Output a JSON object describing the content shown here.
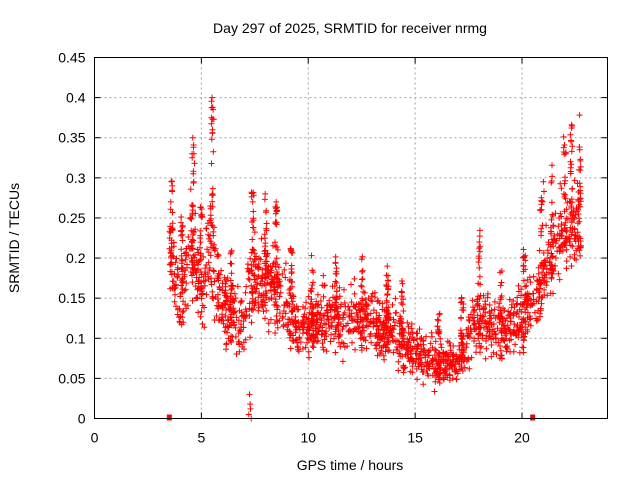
{
  "chart_data": {
    "type": "scatter",
    "title": "Day 297 of 2025, SRMTID for receiver nrmg",
    "xlabel": "GPS time / hours",
    "ylabel": "SRMTID / TECUs",
    "xlim": [
      0,
      24
    ],
    "ylim": [
      0,
      0.45
    ],
    "x_ticks": [
      0,
      5,
      10,
      15,
      20
    ],
    "x_tick_labels": [
      "0",
      "5",
      "10",
      "15",
      "20"
    ],
    "y_ticks": [
      0,
      0.05,
      0.1,
      0.15,
      0.2,
      0.25,
      0.3,
      0.35,
      0.4,
      0.45
    ],
    "y_tick_labels": [
      "0",
      "0.05",
      "0.1",
      "0.15",
      "0.2",
      "0.25",
      "0.3",
      "0.35",
      "0.4",
      "0.45"
    ],
    "grid": true,
    "marker": "+",
    "color": "#ff0000",
    "data_start_hours": 3.5,
    "data_end_hours": 22.75,
    "boundary_marks_hours": [
      3.5,
      20.5
    ],
    "envelope": [
      {
        "x": 3.5,
        "y": 0.21,
        "spread": 0.05
      },
      {
        "x": 4.0,
        "y": 0.14,
        "spread": 0.04
      },
      {
        "x": 4.5,
        "y": 0.22,
        "spread": 0.07
      },
      {
        "x": 5.0,
        "y": 0.16,
        "spread": 0.05
      },
      {
        "x": 5.5,
        "y": 0.22,
        "spread": 0.09
      },
      {
        "x": 6.0,
        "y": 0.14,
        "spread": 0.04
      },
      {
        "x": 7.0,
        "y": 0.12,
        "spread": 0.05
      },
      {
        "x": 7.5,
        "y": 0.18,
        "spread": 0.06
      },
      {
        "x": 8.5,
        "y": 0.16,
        "spread": 0.05
      },
      {
        "x": 9.5,
        "y": 0.11,
        "spread": 0.04
      },
      {
        "x": 11.0,
        "y": 0.13,
        "spread": 0.04
      },
      {
        "x": 12.5,
        "y": 0.12,
        "spread": 0.04
      },
      {
        "x": 14.0,
        "y": 0.11,
        "spread": 0.04
      },
      {
        "x": 15.0,
        "y": 0.08,
        "spread": 0.03
      },
      {
        "x": 16.0,
        "y": 0.07,
        "spread": 0.03
      },
      {
        "x": 17.0,
        "y": 0.07,
        "spread": 0.03
      },
      {
        "x": 18.0,
        "y": 0.13,
        "spread": 0.05
      },
      {
        "x": 19.0,
        "y": 0.11,
        "spread": 0.04
      },
      {
        "x": 20.0,
        "y": 0.12,
        "spread": 0.04
      },
      {
        "x": 21.0,
        "y": 0.18,
        "spread": 0.05
      },
      {
        "x": 22.0,
        "y": 0.24,
        "spread": 0.06
      },
      {
        "x": 22.75,
        "y": 0.26,
        "spread": 0.06
      }
    ],
    "peaks": [
      {
        "x": 3.6,
        "y": 0.295
      },
      {
        "x": 4.6,
        "y": 0.35
      },
      {
        "x": 4.65,
        "y": 0.33
      },
      {
        "x": 5.5,
        "y": 0.4
      },
      {
        "x": 5.55,
        "y": 0.385
      },
      {
        "x": 7.4,
        "y": 0.27
      },
      {
        "x": 8.5,
        "y": 0.27
      },
      {
        "x": 13.7,
        "y": 0.19
      },
      {
        "x": 18.0,
        "y": 0.22
      },
      {
        "x": 21.0,
        "y": 0.295
      },
      {
        "x": 22.3,
        "y": 0.345
      },
      {
        "x": 22.7,
        "y": 0.335
      },
      {
        "x": 7.3,
        "y": 0.012
      },
      {
        "x": 7.25,
        "y": 0.03
      }
    ]
  }
}
